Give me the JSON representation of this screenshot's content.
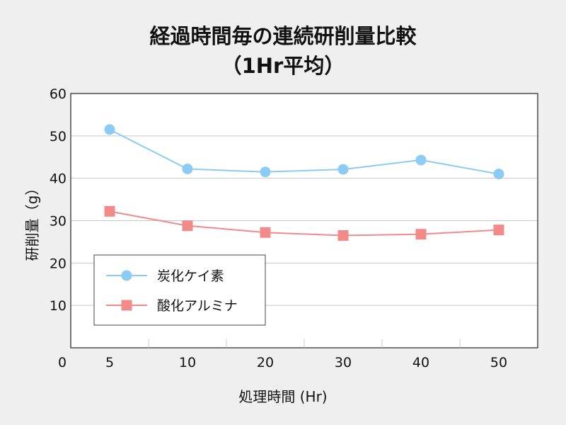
{
  "chart_data": {
    "type": "line",
    "title_lines": [
      "経過時間毎の連続研削量比較",
      "（1Hr平均）"
    ],
    "xlabel": "処理時間 (Hr)",
    "ylabel": "研削量（g）",
    "categories": [
      "5",
      "10",
      "20",
      "30",
      "40",
      "50"
    ],
    "x_origin_label": "0",
    "y_ticks": [
      "10",
      "20",
      "30",
      "40",
      "50",
      "60"
    ],
    "ylim": [
      0,
      60
    ],
    "grid": true,
    "legend_position": "lower-left",
    "series": [
      {
        "name": "炭化ケイ素",
        "values": [
          51.5,
          42.2,
          41.5,
          42.1,
          44.3,
          41.0
        ],
        "color": "#8ccbf3",
        "marker": "circle"
      },
      {
        "name": "酸化アルミナ",
        "values": [
          32.2,
          28.8,
          27.2,
          26.5,
          26.8,
          27.8
        ],
        "color": "#f28a8a",
        "marker": "square"
      }
    ]
  }
}
